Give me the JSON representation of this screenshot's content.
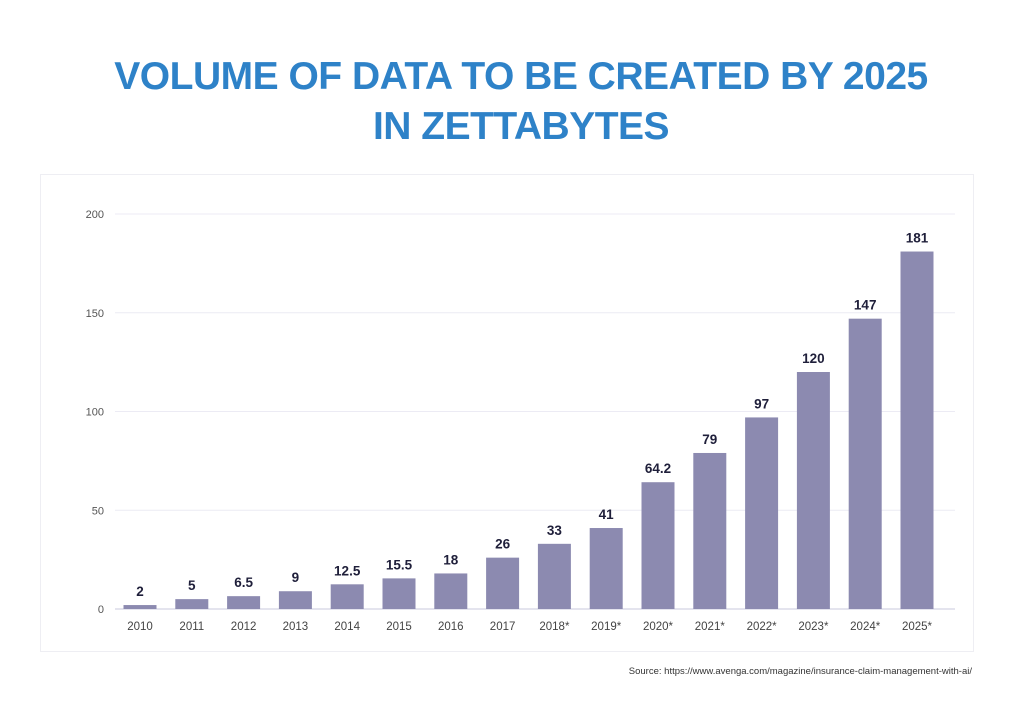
{
  "chart_data": {
    "type": "bar",
    "title_line1": "VOLUME OF DATA TO BE CREATED BY 2025",
    "title_line2": "IN ZETTABYTES",
    "categories": [
      "2010",
      "2011",
      "2012",
      "2013",
      "2014",
      "2015",
      "2016",
      "2017",
      "2018*",
      "2019*",
      "2020*",
      "2021*",
      "2022*",
      "2023*",
      "2024*",
      "2025*"
    ],
    "values": [
      2,
      5,
      6.5,
      9,
      12.5,
      15.5,
      18,
      26,
      33,
      41,
      64.2,
      79,
      97,
      120,
      147,
      181
    ],
    "value_labels": [
      "2",
      "5",
      "6.5",
      "9",
      "12.5",
      "15.5",
      "18",
      "26",
      "33",
      "41",
      "64.2",
      "79",
      "97",
      "120",
      "147",
      "181"
    ],
    "yticks": [
      "0",
      "50",
      "100",
      "150",
      "200"
    ],
    "ylim": [
      0,
      200
    ],
    "grid": true,
    "bar_color": "#8c8ab0",
    "title_color": "#2e82c8"
  },
  "source": "Source: https://www.avenga.com/magazine/insurance-claim-management-with-ai/"
}
